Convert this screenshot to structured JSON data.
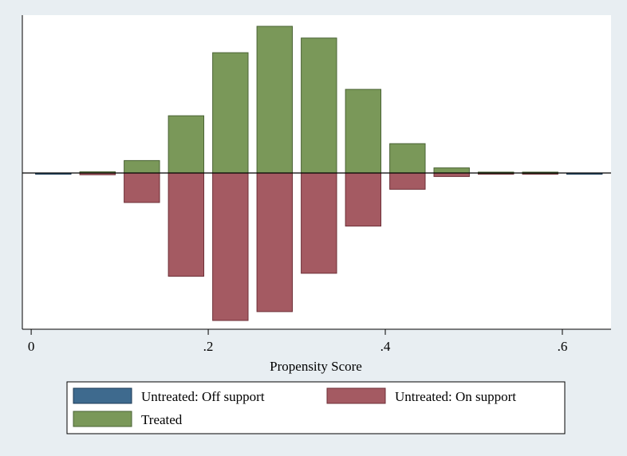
{
  "chart_data": {
    "type": "bar",
    "subtype": "mirrored-histogram",
    "title": "",
    "xlabel": "Propensity Score",
    "ylabel": "",
    "xlim": [
      -0.01,
      0.655
    ],
    "ylim": [
      -1.0,
      1.0
    ],
    "x_ticks": [
      0,
      0.2,
      0.4,
      0.6
    ],
    "x_tick_labels": [
      "0",
      ".2",
      ".4",
      ".6"
    ],
    "bin_width": 0.04,
    "bin_centers": [
      0.025,
      0.075,
      0.125,
      0.175,
      0.225,
      0.275,
      0.325,
      0.375,
      0.425,
      0.475,
      0.525,
      0.575,
      0.625
    ],
    "series": [
      {
        "name": "Untreated: Off support",
        "color": "#3e6a8e",
        "direction": "down",
        "values": [
          0.006,
          0,
          0,
          0,
          0,
          0,
          0,
          0,
          0,
          0,
          0,
          0,
          0.006
        ]
      },
      {
        "name": "Untreated: On support",
        "color": "#a45a62",
        "direction": "down",
        "values": [
          0,
          0.012,
          0.2,
          0.7,
          1.0,
          0.94,
          0.68,
          0.36,
          0.11,
          0.024,
          0.006,
          0.004,
          0
        ]
      },
      {
        "name": "Treated",
        "color": "#7a9859",
        "direction": "up",
        "values": [
          0,
          0.008,
          0.085,
          0.39,
          0.82,
          1.0,
          0.92,
          0.57,
          0.2,
          0.035,
          0.006,
          0.006,
          0
        ]
      }
    ],
    "legend": {
      "position": "bottom",
      "entries": [
        "Untreated: Off support",
        "Untreated: On support",
        "Treated"
      ]
    }
  }
}
